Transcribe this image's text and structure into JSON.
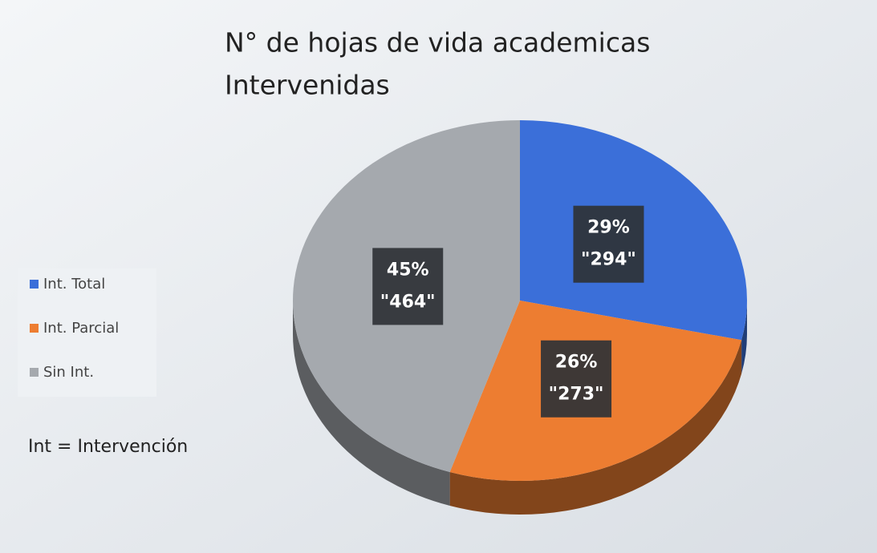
{
  "chart_data": {
    "type": "pie",
    "title": [
      "N° de hojas de vida academicas",
      "Intervenidas"
    ],
    "categories": [
      "Int. Total",
      "Int. Parcial",
      "Sin Int."
    ],
    "values": [
      294,
      273,
      464
    ],
    "value_labels": [
      "\"294\"",
      "\"273\"",
      "\"464\""
    ],
    "percents": [
      29,
      26,
      45
    ],
    "percent_labels": [
      "29%",
      "26%",
      "45%"
    ],
    "colors": [
      "#3b6fd9",
      "#ed7d31",
      "#a5a9ae"
    ],
    "note": "Int = Intervención",
    "legend": "left"
  }
}
